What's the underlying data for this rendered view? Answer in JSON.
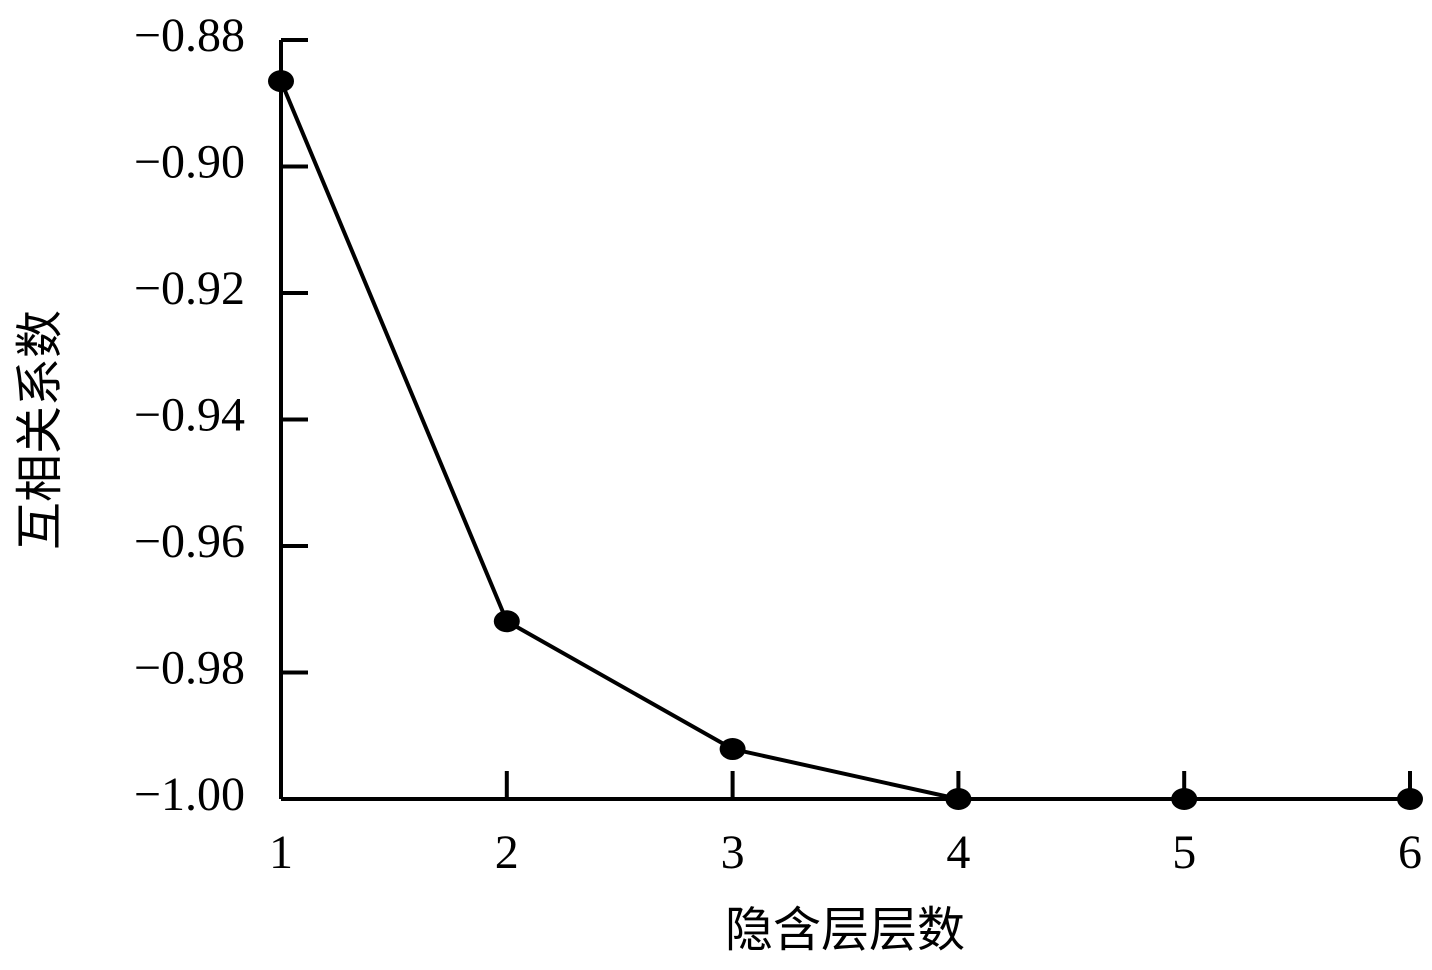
{
  "chart_data": {
    "type": "line",
    "x_label": "隐含层层数",
    "y_label": "互相关系数",
    "x": [
      1,
      2,
      3,
      4,
      5,
      6
    ],
    "values": [
      -0.8865,
      -0.9719,
      -0.9921,
      -1.0,
      -1.0,
      -1.0
    ],
    "color": "#000000",
    "xlim": [
      1,
      6
    ],
    "xticks": [
      1,
      2,
      3,
      4,
      5,
      6
    ],
    "ylim": [
      -1.0,
      -0.88
    ],
    "yticks": [
      {
        "value": -1.0,
        "label": "−1.00"
      },
      {
        "value": -0.98,
        "label": "−0.98"
      },
      {
        "value": -0.96,
        "label": "−0.96"
      },
      {
        "value": -0.94,
        "label": "−0.94"
      },
      {
        "value": -0.92,
        "label": "−0.92"
      },
      {
        "value": -0.9,
        "label": "−0.90"
      },
      {
        "value": -0.88,
        "label": "−0.88"
      }
    ],
    "grid": false
  }
}
